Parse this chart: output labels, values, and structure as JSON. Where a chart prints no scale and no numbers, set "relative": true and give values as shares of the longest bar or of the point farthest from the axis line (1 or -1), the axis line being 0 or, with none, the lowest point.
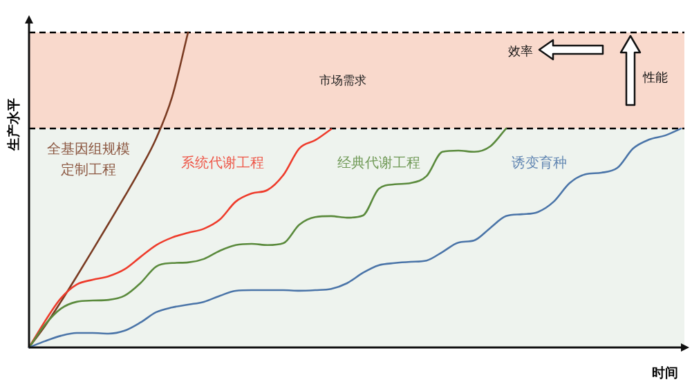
{
  "chart_data": {
    "type": "line",
    "relative": true,
    "xlabel": "时间",
    "ylabel": "生产水平",
    "categories": [
      null,
      null,
      null,
      null,
      null,
      null,
      null,
      null,
      null,
      null,
      null,
      null,
      null,
      null,
      null,
      null,
      null,
      null,
      null,
      null,
      null,
      null,
      null,
      null,
      null,
      null,
      null,
      null,
      null,
      null,
      null,
      null,
      null,
      null,
      null,
      null,
      null,
      null,
      null,
      null,
      null,
      null
    ],
    "series": [
      {
        "name": "全基因组规模定制工程",
        "color": "#7a3b22",
        "values": [
          0,
          0.068,
          0.145,
          0.226,
          0.309,
          0.393,
          0.478,
          0.566,
          0.664,
          0.796,
          1.0,
          null,
          null,
          null,
          null,
          null,
          null,
          null,
          null,
          null,
          null,
          null,
          null,
          null,
          null,
          null,
          null,
          null,
          null,
          null,
          null,
          null,
          null,
          null,
          null,
          null,
          null,
          null,
          null,
          null,
          null,
          null
        ]
      },
      {
        "name": "系统代谢工程",
        "color": "#ee3b2b",
        "values": [
          0,
          0.083,
          0.156,
          0.2,
          0.215,
          0.226,
          0.248,
          0.287,
          0.325,
          0.349,
          0.364,
          0.377,
          0.406,
          0.463,
          0.489,
          0.5,
          0.548,
          0.632,
          0.658,
          0.693,
          null,
          null,
          null,
          null,
          null,
          null,
          null,
          null,
          null,
          null,
          null,
          null,
          null,
          null,
          null,
          null,
          null,
          null,
          null,
          null,
          null,
          null
        ]
      },
      {
        "name": "经典代谢工程",
        "color": "#5a8a3c",
        "values": [
          0,
          0.072,
          0.123,
          0.145,
          0.149,
          0.151,
          0.164,
          0.204,
          0.257,
          0.268,
          0.27,
          0.281,
          0.307,
          0.325,
          0.329,
          0.325,
          0.331,
          0.39,
          0.414,
          0.417,
          0.412,
          0.419,
          0.504,
          0.518,
          0.522,
          0.544,
          0.621,
          0.625,
          0.621,
          0.638,
          0.695,
          null,
          null,
          null,
          null,
          null,
          null,
          null,
          null,
          null,
          null,
          null
        ]
      },
      {
        "name": "诱变育种",
        "color": "#4a74a8",
        "values": [
          0,
          0.02,
          0.037,
          0.046,
          0.046,
          0.044,
          0.053,
          0.079,
          0.112,
          0.127,
          0.136,
          0.145,
          0.164,
          0.18,
          0.182,
          0.182,
          0.182,
          0.18,
          0.182,
          0.186,
          0.204,
          0.237,
          0.261,
          0.268,
          0.272,
          0.276,
          0.303,
          0.333,
          0.34,
          0.379,
          0.417,
          0.423,
          0.43,
          0.463,
          0.522,
          0.55,
          0.555,
          0.57,
          0.632,
          0.66,
          0.673,
          0.695
        ]
      }
    ],
    "bands": [
      {
        "axis": "y",
        "from": 0.695,
        "to": 1.0,
        "label": "市场需求",
        "color": "#f9d9cc"
      },
      {
        "axis": "y",
        "from": 0,
        "to": 0.695,
        "color": "#eef3ee"
      }
    ],
    "ref_lines": [
      {
        "axis": "y",
        "value": 1.0,
        "color": "#000000",
        "line_style": "dashed"
      },
      {
        "axis": "y",
        "value": 0.695,
        "color": "#000000",
        "line_style": "dashed"
      }
    ],
    "annotations": [
      "效率",
      "性能"
    ]
  }
}
